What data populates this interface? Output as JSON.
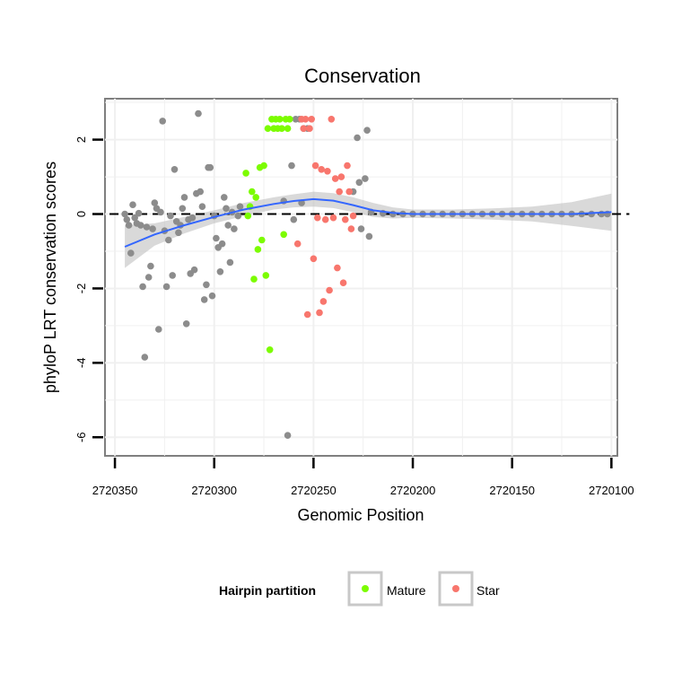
{
  "chart_data": {
    "type": "scatter",
    "title": "Conservation",
    "xlabel": "Genomic Position",
    "ylabel": "phyloP LRT conservation scores",
    "x_reversed": true,
    "xlim": [
      2720355,
      2720097
    ],
    "ylim": [
      -6.5,
      3.1
    ],
    "xticks": [
      2720350,
      2720300,
      2720250,
      2720200,
      2720150,
      2720100
    ],
    "xtick_labels": [
      "2720350",
      "2720300",
      "2720250",
      "2720200",
      "2720150",
      "2720100"
    ],
    "yticks": [
      2,
      0,
      -2,
      -4,
      -6
    ],
    "ytick_labels": [
      "2",
      "0",
      "-2",
      "-4",
      "-6"
    ],
    "reference_line": {
      "y": 0,
      "style": "dashed",
      "color": "#000000"
    },
    "grid": true,
    "legend": {
      "title": "Hairpin partition",
      "placement": "bottom",
      "entries": [
        {
          "label": "Mature",
          "color": "#7cfc00"
        },
        {
          "label": "Star",
          "color": "#f8766d"
        }
      ]
    },
    "colors": {
      "other": "#8c8c8c",
      "mature": "#7cfc00",
      "star": "#f8766d",
      "smooth": "#3366ff",
      "ribbon": "#c0c0c0"
    },
    "smooth_line": {
      "x": [
        2720345,
        2720330,
        2720315,
        2720300,
        2720285,
        2720270,
        2720260,
        2720250,
        2720240,
        2720230,
        2720220,
        2720210,
        2720200,
        2720180,
        2720160,
        2720140,
        2720120,
        2720100
      ],
      "y": [
        -0.88,
        -0.55,
        -0.3,
        -0.08,
        0.12,
        0.27,
        0.35,
        0.4,
        0.36,
        0.24,
        0.1,
        0.03,
        0.0,
        0.0,
        0.0,
        0.0,
        0.0,
        0.05
      ],
      "lower": [
        -1.45,
        -0.85,
        -0.52,
        -0.25,
        -0.05,
        0.12,
        0.18,
        0.2,
        0.16,
        0.05,
        -0.08,
        -0.12,
        -0.1,
        -0.12,
        -0.15,
        -0.2,
        -0.32,
        -0.45
      ],
      "upper": [
        -0.3,
        -0.25,
        -0.08,
        0.1,
        0.3,
        0.45,
        0.53,
        0.6,
        0.56,
        0.45,
        0.3,
        0.18,
        0.12,
        0.12,
        0.15,
        0.2,
        0.32,
        0.55
      ]
    },
    "series": [
      {
        "name": "Other",
        "points": [
          [
            2720345,
            0.0
          ],
          [
            2720344,
            -0.15
          ],
          [
            2720343,
            -0.3
          ],
          [
            2720342,
            -1.05
          ],
          [
            2720341,
            0.25
          ],
          [
            2720340,
            -0.1
          ],
          [
            2720339,
            -0.25
          ],
          [
            2720338,
            0.02
          ],
          [
            2720337,
            -0.3
          ],
          [
            2720336,
            -1.95
          ],
          [
            2720335,
            -3.85
          ],
          [
            2720334,
            -0.35
          ],
          [
            2720333,
            -1.7
          ],
          [
            2720332,
            -1.4
          ],
          [
            2720331,
            -0.4
          ],
          [
            2720330,
            0.3
          ],
          [
            2720329,
            0.15
          ],
          [
            2720328,
            -3.1
          ],
          [
            2720327,
            0.05
          ],
          [
            2720326,
            2.5
          ],
          [
            2720325,
            -0.45
          ],
          [
            2720324,
            -1.95
          ],
          [
            2720323,
            -0.7
          ],
          [
            2720322,
            -0.05
          ],
          [
            2720321,
            -1.65
          ],
          [
            2720320,
            1.2
          ],
          [
            2720319,
            -0.2
          ],
          [
            2720318,
            -0.5
          ],
          [
            2720317,
            -0.3
          ],
          [
            2720316,
            0.15
          ],
          [
            2720315,
            0.45
          ],
          [
            2720314,
            -2.95
          ],
          [
            2720313,
            -0.15
          ],
          [
            2720312,
            -1.6
          ],
          [
            2720311,
            -0.1
          ],
          [
            2720310,
            -1.5
          ],
          [
            2720309,
            0.55
          ],
          [
            2720308,
            2.7
          ],
          [
            2720307,
            0.6
          ],
          [
            2720306,
            0.2
          ],
          [
            2720305,
            -2.3
          ],
          [
            2720304,
            -1.9
          ],
          [
            2720303,
            1.25
          ],
          [
            2720302,
            1.25
          ],
          [
            2720301,
            -2.2
          ],
          [
            2720300,
            -0.05
          ],
          [
            2720299,
            -0.65
          ],
          [
            2720298,
            -0.9
          ],
          [
            2720297,
            -1.55
          ],
          [
            2720296,
            -0.8
          ],
          [
            2720295,
            0.45
          ],
          [
            2720294,
            0.15
          ],
          [
            2720293,
            -0.3
          ],
          [
            2720292,
            -1.3
          ],
          [
            2720291,
            0.05
          ],
          [
            2720290,
            -0.4
          ],
          [
            2720288,
            -0.05
          ],
          [
            2720287,
            0.2
          ],
          [
            2720265,
            0.35
          ],
          [
            2720263,
            -5.95
          ],
          [
            2720261,
            1.3
          ],
          [
            2720260,
            -0.15
          ],
          [
            2720259,
            2.55
          ],
          [
            2720257,
            2.55
          ],
          [
            2720256,
            0.3
          ],
          [
            2720255,
            2.3
          ],
          [
            2720253,
            2.3
          ],
          [
            2720230,
            0.6
          ],
          [
            2720228,
            2.05
          ],
          [
            2720227,
            0.85
          ],
          [
            2720226,
            -0.4
          ],
          [
            2720224,
            0.95
          ],
          [
            2720223,
            2.25
          ],
          [
            2720222,
            -0.6
          ],
          [
            2720221,
            0.05
          ],
          [
            2720215,
            0.02
          ],
          [
            2720210,
            0.0
          ],
          [
            2720205,
            0.0
          ],
          [
            2720200,
            0.0
          ],
          [
            2720195,
            0.0
          ],
          [
            2720190,
            0.0
          ],
          [
            2720185,
            0.0
          ],
          [
            2720180,
            0.0
          ],
          [
            2720175,
            0.0
          ],
          [
            2720170,
            0.0
          ],
          [
            2720165,
            0.0
          ],
          [
            2720160,
            0.0
          ],
          [
            2720155,
            0.0
          ],
          [
            2720150,
            0.0
          ],
          [
            2720145,
            0.0
          ],
          [
            2720140,
            0.0
          ],
          [
            2720135,
            0.0
          ],
          [
            2720130,
            0.0
          ],
          [
            2720125,
            0.0
          ],
          [
            2720120,
            0.0
          ],
          [
            2720115,
            0.0
          ],
          [
            2720110,
            0.0
          ],
          [
            2720105,
            0.0
          ],
          [
            2720102,
            0.0
          ]
        ]
      },
      {
        "name": "Mature",
        "points": [
          [
            2720284,
            1.1
          ],
          [
            2720283,
            -0.05
          ],
          [
            2720282,
            0.2
          ],
          [
            2720281,
            0.6
          ],
          [
            2720280,
            -1.75
          ],
          [
            2720279,
            0.45
          ],
          [
            2720278,
            -0.95
          ],
          [
            2720277,
            1.25
          ],
          [
            2720276,
            -0.7
          ],
          [
            2720275,
            1.3
          ],
          [
            2720274,
            -1.65
          ],
          [
            2720273,
            2.3
          ],
          [
            2720272,
            -3.65
          ],
          [
            2720271,
            2.55
          ],
          [
            2720270,
            2.3
          ],
          [
            2720269,
            2.55
          ],
          [
            2720268,
            2.3
          ],
          [
            2720267,
            2.55
          ],
          [
            2720266,
            2.3
          ],
          [
            2720265,
            -0.55
          ],
          [
            2720264,
            2.55
          ],
          [
            2720263,
            2.3
          ],
          [
            2720262,
            2.55
          ]
        ]
      },
      {
        "name": "Star",
        "points": [
          [
            2720258,
            -0.8
          ],
          [
            2720256,
            2.55
          ],
          [
            2720255,
            2.3
          ],
          [
            2720254,
            2.55
          ],
          [
            2720253,
            -2.7
          ],
          [
            2720252,
            2.3
          ],
          [
            2720251,
            2.55
          ],
          [
            2720250,
            -1.2
          ],
          [
            2720249,
            1.3
          ],
          [
            2720248,
            -0.1
          ],
          [
            2720247,
            -2.65
          ],
          [
            2720246,
            1.2
          ],
          [
            2720245,
            -2.35
          ],
          [
            2720244,
            -0.15
          ],
          [
            2720243,
            1.15
          ],
          [
            2720242,
            -2.05
          ],
          [
            2720241,
            2.55
          ],
          [
            2720240,
            -0.1
          ],
          [
            2720239,
            0.95
          ],
          [
            2720238,
            -1.45
          ],
          [
            2720237,
            0.6
          ],
          [
            2720236,
            1.0
          ],
          [
            2720235,
            -1.85
          ],
          [
            2720234,
            -0.15
          ],
          [
            2720233,
            1.3
          ],
          [
            2720232,
            0.6
          ],
          [
            2720231,
            -0.4
          ],
          [
            2720230,
            -0.05
          ]
        ]
      }
    ]
  }
}
